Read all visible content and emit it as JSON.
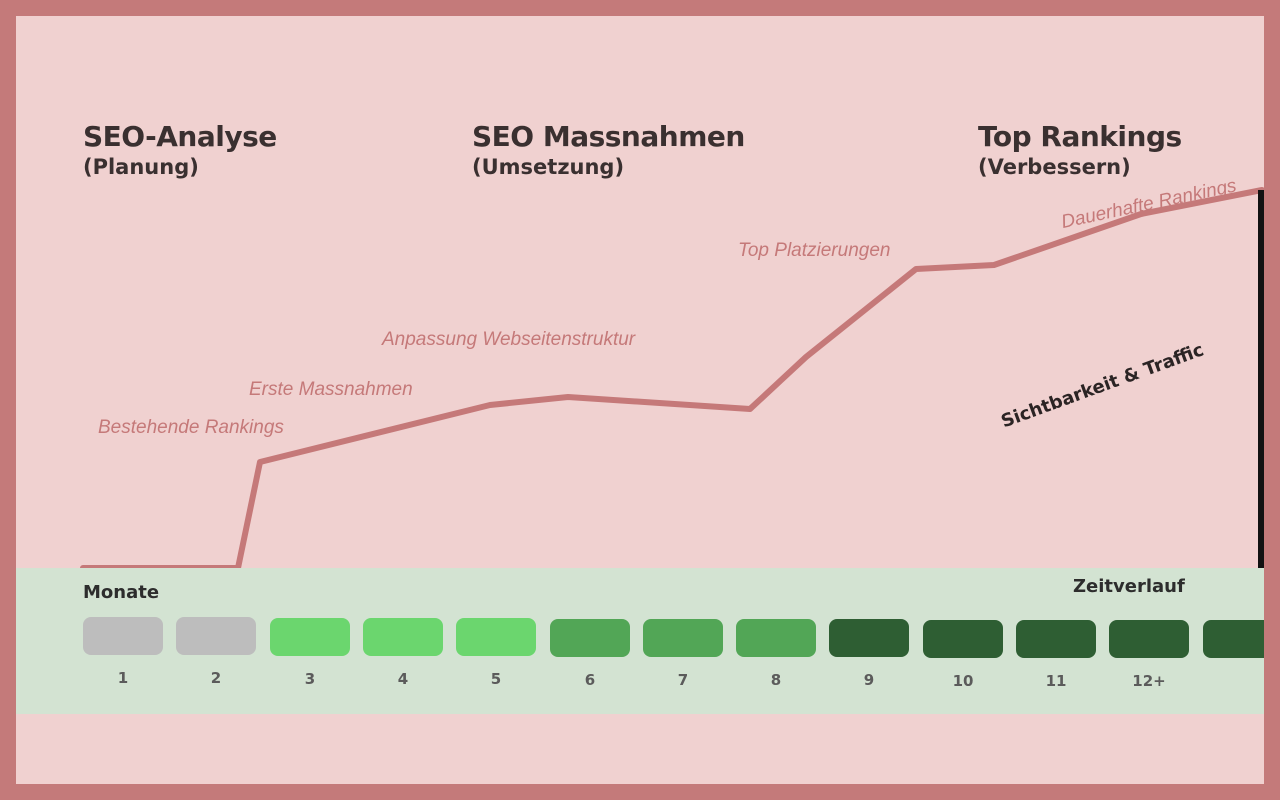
{
  "phases": [
    {
      "title": "SEO-Analyse",
      "subtitle": "(Planung)"
    },
    {
      "title": "SEO Massnahmen",
      "subtitle": "(Umsetzung)"
    },
    {
      "title": "Top Rankings",
      "subtitle": "(Verbessern)"
    }
  ],
  "milestones": [
    "Bestehende Rankings",
    "Erste Massnahmen",
    "Anpassung Webseitenstruktur",
    "Top Platzierungen",
    "Dauerhafte Rankings"
  ],
  "y_axis_label": "Sichtbarkeit & Traffic",
  "timeline": {
    "label_left": "Monate",
    "label_right": "Zeitverlauf",
    "months": [
      {
        "label": "1",
        "color": "#bdbdbd"
      },
      {
        "label": "2",
        "color": "#bdbdbd"
      },
      {
        "label": "3",
        "color": "#6bd66e"
      },
      {
        "label": "4",
        "color": "#6bd66e"
      },
      {
        "label": "5",
        "color": "#6bd66e"
      },
      {
        "label": "6",
        "color": "#52a656"
      },
      {
        "label": "7",
        "color": "#52a656"
      },
      {
        "label": "8",
        "color": "#52a656"
      },
      {
        "label": "9",
        "color": "#2e5e33"
      },
      {
        "label": "10",
        "color": "#2e5e33"
      },
      {
        "label": "11",
        "color": "#2e5e33"
      },
      {
        "label": "12+",
        "color": "#2e5e33"
      },
      {
        "label": "",
        "color": "#2e5e33"
      }
    ]
  },
  "colors": {
    "curve": "#c57979",
    "background": "#f0d1d0",
    "timeline_bg": "#d3e3d2",
    "border": "#c47a7a"
  }
}
